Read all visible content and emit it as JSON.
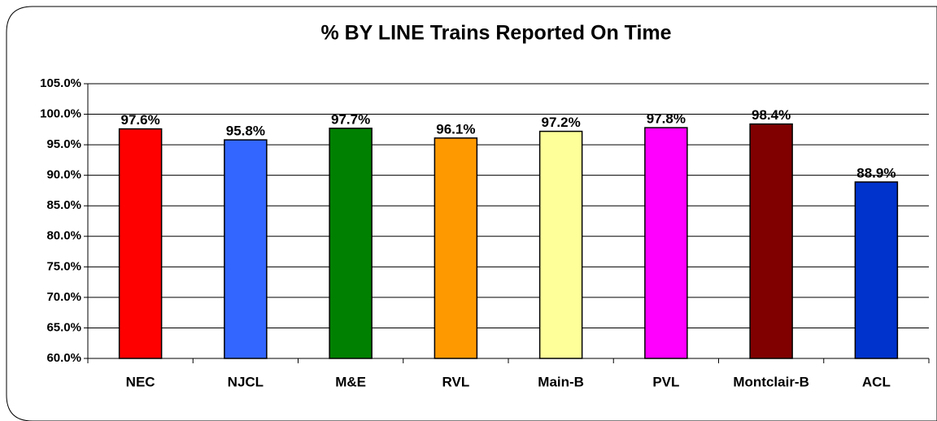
{
  "chart_data": {
    "type": "bar",
    "title": "%  BY LINE Trains Reported On Time",
    "categories": [
      "NEC",
      "NJCL",
      "M&E",
      "RVL",
      "Main-B",
      "PVL",
      "Montclair-B",
      "ACL"
    ],
    "values": [
      97.6,
      95.8,
      97.7,
      96.1,
      97.2,
      97.8,
      98.4,
      88.9
    ],
    "value_labels": [
      "97.6%",
      "95.8%",
      "97.7%",
      "96.1%",
      "97.2%",
      "97.8%",
      "98.4%",
      "88.9%"
    ],
    "colors": [
      "#ff0000",
      "#3366ff",
      "#008000",
      "#ff9900",
      "#ffff99",
      "#ff00ff",
      "#800000",
      "#0033cc"
    ],
    "ylim": [
      60,
      105
    ],
    "yticks": [
      {
        "value": 60,
        "label": "60.0%"
      },
      {
        "value": 65,
        "label": "65.0%"
      },
      {
        "value": 70,
        "label": "70.0%"
      },
      {
        "value": 75,
        "label": "75.0%"
      },
      {
        "value": 80,
        "label": "80.0%"
      },
      {
        "value": 85,
        "label": "85.0%"
      },
      {
        "value": 90,
        "label": "90.0%"
      },
      {
        "value": 95,
        "label": "95.0%"
      },
      {
        "value": 100,
        "label": "100.0%"
      },
      {
        "value": 105,
        "label": "105.0%"
      }
    ],
    "grid": true
  }
}
